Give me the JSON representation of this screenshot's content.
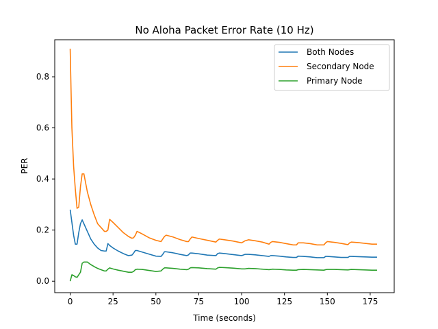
{
  "chart_data": {
    "type": "line",
    "title": "No Aloha Packet Error Rate (10 Hz)",
    "xlabel": "Time (seconds)",
    "ylabel": "PER",
    "xlim": [
      -9,
      189
    ],
    "ylim": [
      -0.045,
      0.945
    ],
    "xticks": [
      0,
      25,
      50,
      75,
      100,
      125,
      150,
      175
    ],
    "yticks": [
      0.0,
      0.2,
      0.4,
      0.6,
      0.8
    ],
    "ytick_labels": [
      "0.0",
      "0.2",
      "0.4",
      "0.6",
      "0.8"
    ],
    "grid": false,
    "legend_position": "top-right",
    "series": [
      {
        "name": "Both Nodes",
        "color": "#1f77b4",
        "x": [
          0,
          1,
          2,
          3,
          4,
          5,
          6,
          7,
          8,
          10,
          12,
          14,
          16,
          18,
          20,
          21,
          22,
          23,
          25,
          28,
          31,
          34,
          36,
          37,
          38,
          39,
          42,
          46,
          50,
          53,
          54,
          55,
          56,
          60,
          64,
          68,
          69,
          70,
          71,
          75,
          80,
          85,
          86,
          87,
          90,
          95,
          100,
          102,
          104,
          108,
          112,
          116,
          117,
          118,
          122,
          126,
          130,
          132,
          133,
          136,
          140,
          144,
          148,
          149,
          150,
          154,
          158,
          162,
          163,
          164,
          168,
          172,
          176,
          179
        ],
        "y": [
          0.28,
          0.23,
          0.18,
          0.145,
          0.145,
          0.19,
          0.225,
          0.24,
          0.225,
          0.195,
          0.165,
          0.145,
          0.13,
          0.12,
          0.118,
          0.118,
          0.147,
          0.14,
          0.13,
          0.118,
          0.108,
          0.1,
          0.102,
          0.11,
          0.12,
          0.12,
          0.114,
          0.106,
          0.098,
          0.097,
          0.105,
          0.115,
          0.115,
          0.111,
          0.105,
          0.1,
          0.103,
          0.11,
          0.11,
          0.107,
          0.102,
          0.1,
          0.108,
          0.11,
          0.108,
          0.104,
          0.1,
          0.105,
          0.105,
          0.103,
          0.1,
          0.097,
          0.1,
          0.1,
          0.098,
          0.095,
          0.093,
          0.093,
          0.098,
          0.097,
          0.095,
          0.092,
          0.092,
          0.097,
          0.097,
          0.095,
          0.093,
          0.093,
          0.097,
          0.097,
          0.096,
          0.095,
          0.094,
          0.094
        ]
      },
      {
        "name": "Secondary Node",
        "color": "#ff7f0e",
        "x": [
          0,
          0.5,
          1,
          2,
          3,
          4,
          5,
          6,
          7,
          8,
          10,
          12,
          14,
          16,
          18,
          20,
          21,
          22,
          23,
          25,
          28,
          31,
          34,
          36,
          37,
          38,
          39,
          42,
          46,
          50,
          53,
          54,
          55,
          56,
          60,
          64,
          68,
          69,
          70,
          71,
          75,
          80,
          85,
          86,
          87,
          90,
          95,
          100,
          102,
          104,
          108,
          112,
          116,
          117,
          118,
          122,
          126,
          130,
          132,
          133,
          136,
          140,
          144,
          148,
          149,
          150,
          154,
          158,
          162,
          163,
          164,
          168,
          172,
          176,
          179
        ],
        "y": [
          0.91,
          0.75,
          0.6,
          0.45,
          0.36,
          0.285,
          0.29,
          0.37,
          0.42,
          0.42,
          0.35,
          0.3,
          0.26,
          0.225,
          0.21,
          0.195,
          0.195,
          0.2,
          0.242,
          0.23,
          0.21,
          0.19,
          0.175,
          0.168,
          0.17,
          0.18,
          0.195,
          0.185,
          0.17,
          0.16,
          0.155,
          0.165,
          0.175,
          0.18,
          0.173,
          0.163,
          0.155,
          0.155,
          0.165,
          0.173,
          0.167,
          0.16,
          0.153,
          0.16,
          0.165,
          0.162,
          0.157,
          0.15,
          0.158,
          0.162,
          0.158,
          0.153,
          0.145,
          0.152,
          0.155,
          0.152,
          0.147,
          0.142,
          0.142,
          0.15,
          0.15,
          0.147,
          0.142,
          0.142,
          0.15,
          0.155,
          0.152,
          0.148,
          0.143,
          0.15,
          0.153,
          0.151,
          0.148,
          0.145,
          0.145
        ]
      },
      {
        "name": "Primary Node",
        "color": "#2ca02c",
        "x": [
          0,
          1,
          2,
          3,
          4,
          5,
          6,
          7,
          8,
          10,
          12,
          14,
          16,
          18,
          20,
          21,
          22,
          23,
          25,
          28,
          31,
          34,
          36,
          37,
          38,
          39,
          42,
          46,
          50,
          53,
          54,
          55,
          56,
          60,
          64,
          68,
          69,
          70,
          71,
          75,
          80,
          85,
          86,
          87,
          90,
          95,
          100,
          102,
          104,
          108,
          112,
          116,
          117,
          118,
          122,
          126,
          130,
          132,
          133,
          136,
          140,
          144,
          148,
          149,
          150,
          154,
          158,
          162,
          163,
          164,
          168,
          172,
          176,
          179
        ],
        "y": [
          0.0,
          0.025,
          0.022,
          0.017,
          0.015,
          0.025,
          0.035,
          0.07,
          0.075,
          0.075,
          0.065,
          0.057,
          0.05,
          0.045,
          0.04,
          0.04,
          0.047,
          0.052,
          0.048,
          0.043,
          0.039,
          0.035,
          0.035,
          0.038,
          0.045,
          0.047,
          0.046,
          0.042,
          0.038,
          0.04,
          0.047,
          0.052,
          0.052,
          0.05,
          0.047,
          0.045,
          0.047,
          0.052,
          0.053,
          0.052,
          0.049,
          0.047,
          0.052,
          0.054,
          0.053,
          0.051,
          0.048,
          0.048,
          0.05,
          0.049,
          0.047,
          0.045,
          0.046,
          0.047,
          0.046,
          0.044,
          0.043,
          0.043,
          0.045,
          0.046,
          0.045,
          0.044,
          0.043,
          0.045,
          0.046,
          0.046,
          0.045,
          0.044,
          0.045,
          0.046,
          0.045,
          0.044,
          0.043,
          0.043
        ]
      }
    ]
  }
}
